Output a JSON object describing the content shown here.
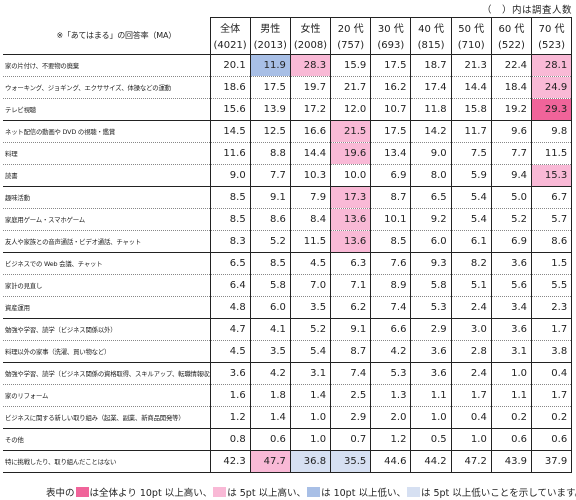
{
  "note": "（　）内は調査人数",
  "header": {
    "question": "※「あてはまる」の回答率（MA）",
    "columns": [
      {
        "label": "全体",
        "n": "(4021)"
      },
      {
        "label": "男性",
        "n": "(2013)"
      },
      {
        "label": "女性",
        "n": "(2008)"
      },
      {
        "label": "20 代",
        "n": "(757)"
      },
      {
        "label": "30 代",
        "n": "(693)"
      },
      {
        "label": "40 代",
        "n": "(815)"
      },
      {
        "label": "50 代",
        "n": "(710)"
      },
      {
        "label": "60 代",
        "n": "(522)"
      },
      {
        "label": "70 代",
        "n": "(523)"
      }
    ]
  },
  "colors": {
    "high10": "#f0649a",
    "high5": "#f9b9d6",
    "low10": "#a8bfe6",
    "low5": "#d6e0f2"
  },
  "rows": [
    {
      "label": "家の片付け、不要物の廃棄",
      "values": [
        "20.1",
        "11.9",
        "28.3",
        "15.9",
        "17.5",
        "18.7",
        "21.3",
        "22.4",
        "28.1"
      ],
      "marks": [
        "",
        "low10",
        "high5",
        "",
        "",
        "",
        "",
        "",
        "high5"
      ]
    },
    {
      "label": "ウォーキング、ジョギング、エクササイズ、体操などの運動",
      "values": [
        "18.6",
        "17.5",
        "19.7",
        "21.7",
        "16.2",
        "17.4",
        "14.4",
        "18.4",
        "24.9"
      ],
      "marks": [
        "",
        "",
        "",
        "",
        "",
        "",
        "",
        "",
        "high5"
      ]
    },
    {
      "label": "テレビ視聴",
      "values": [
        "15.6",
        "13.9",
        "17.2",
        "12.0",
        "10.7",
        "11.8",
        "15.8",
        "19.2",
        "29.3"
      ],
      "marks": [
        "",
        "",
        "",
        "",
        "",
        "",
        "",
        "",
        "high10"
      ]
    },
    {
      "label": "ネット配信の動画や DVD の視聴・鑑賞",
      "values": [
        "14.5",
        "12.5",
        "16.6",
        "21.5",
        "17.5",
        "14.2",
        "11.7",
        "9.6",
        "9.8"
      ],
      "marks": [
        "",
        "",
        "",
        "high5",
        "",
        "",
        "",
        "",
        ""
      ]
    },
    {
      "label": "料理",
      "values": [
        "11.6",
        "8.8",
        "14.4",
        "19.6",
        "13.4",
        "9.0",
        "7.5",
        "7.7",
        "11.5"
      ],
      "marks": [
        "",
        "",
        "",
        "high5",
        "",
        "",
        "",
        "",
        ""
      ]
    },
    {
      "label": "読書",
      "values": [
        "9.0",
        "7.7",
        "10.3",
        "10.0",
        "6.9",
        "8.0",
        "5.9",
        "9.4",
        "15.3"
      ],
      "marks": [
        "",
        "",
        "",
        "",
        "",
        "",
        "",
        "",
        "high5"
      ]
    },
    {
      "label": "趣味活動",
      "values": [
        "8.5",
        "9.1",
        "7.9",
        "17.3",
        "8.7",
        "6.5",
        "5.4",
        "5.0",
        "6.7"
      ],
      "marks": [
        "",
        "",
        "",
        "high5",
        "",
        "",
        "",
        "",
        ""
      ]
    },
    {
      "label": "家庭用ゲーム・スマホゲーム",
      "values": [
        "8.5",
        "8.6",
        "8.4",
        "13.6",
        "10.1",
        "9.2",
        "5.4",
        "5.2",
        "5.7"
      ],
      "marks": [
        "",
        "",
        "",
        "high5",
        "",
        "",
        "",
        "",
        ""
      ]
    },
    {
      "label": "友人や家族との音声通話・ビデオ通話、チャット",
      "values": [
        "8.3",
        "5.2",
        "11.5",
        "13.6",
        "8.5",
        "6.0",
        "6.1",
        "6.9",
        "8.6"
      ],
      "marks": [
        "",
        "",
        "",
        "high5",
        "",
        "",
        "",
        "",
        ""
      ]
    },
    {
      "label": "ビジネスでの Web 会議、チャット",
      "values": [
        "6.5",
        "8.5",
        "4.5",
        "6.3",
        "7.6",
        "9.3",
        "8.2",
        "3.6",
        "1.5"
      ],
      "marks": [
        "",
        "",
        "",
        "",
        "",
        "",
        "",
        "",
        ""
      ]
    },
    {
      "label": "家計の見直し",
      "values": [
        "6.4",
        "5.8",
        "7.0",
        "7.1",
        "8.9",
        "5.8",
        "5.1",
        "5.6",
        "5.5"
      ],
      "marks": [
        "",
        "",
        "",
        "",
        "",
        "",
        "",
        "",
        ""
      ]
    },
    {
      "label": "資産運用",
      "values": [
        "4.8",
        "6.0",
        "3.5",
        "6.2",
        "7.4",
        "5.3",
        "2.4",
        "3.4",
        "2.3"
      ],
      "marks": [
        "",
        "",
        "",
        "",
        "",
        "",
        "",
        "",
        ""
      ]
    },
    {
      "label": "勉強や学習、読学（ビジネス関係以外）",
      "values": [
        "4.7",
        "4.1",
        "5.2",
        "9.1",
        "6.6",
        "2.9",
        "3.0",
        "3.6",
        "1.7"
      ],
      "marks": [
        "",
        "",
        "",
        "",
        "",
        "",
        "",
        "",
        ""
      ]
    },
    {
      "label": "料理以外の家事（洗濯、買い物など）",
      "values": [
        "4.5",
        "3.5",
        "5.4",
        "8.7",
        "4.2",
        "3.6",
        "2.8",
        "3.1",
        "3.8"
      ],
      "marks": [
        "",
        "",
        "",
        "",
        "",
        "",
        "",
        "",
        ""
      ]
    },
    {
      "label": "勉強や学習、読学（ビジネス関係の資格取得、スキルアップ、転職情報収集等）",
      "values": [
        "3.6",
        "4.2",
        "3.1",
        "7.4",
        "5.3",
        "3.6",
        "2.4",
        "1.0",
        "0.4"
      ],
      "marks": [
        "",
        "",
        "",
        "",
        "",
        "",
        "",
        "",
        ""
      ]
    },
    {
      "label": "家のリフォーム",
      "values": [
        "1.6",
        "1.8",
        "1.4",
        "2.5",
        "1.3",
        "1.1",
        "1.7",
        "1.1",
        "1.7"
      ],
      "marks": [
        "",
        "",
        "",
        "",
        "",
        "",
        "",
        "",
        ""
      ]
    },
    {
      "label": "ビジネスに関する新しい取り組み（起業、副業、新商品開発等）",
      "values": [
        "1.2",
        "1.4",
        "1.0",
        "2.9",
        "2.0",
        "1.0",
        "0.4",
        "0.2",
        "0.2"
      ],
      "marks": [
        "",
        "",
        "",
        "",
        "",
        "",
        "",
        "",
        ""
      ]
    },
    {
      "label": "その他",
      "values": [
        "0.8",
        "0.6",
        "1.0",
        "0.7",
        "1.2",
        "0.5",
        "1.0",
        "0.6",
        "0.6"
      ],
      "marks": [
        "",
        "",
        "",
        "",
        "",
        "",
        "",
        "",
        ""
      ]
    },
    {
      "label": "特に挑戦したり、取り組んだことはない",
      "values": [
        "42.3",
        "47.7",
        "36.8",
        "35.5",
        "44.6",
        "44.2",
        "47.2",
        "43.9",
        "37.9"
      ],
      "marks": [
        "",
        "high5",
        "low5",
        "low5",
        "",
        "",
        "",
        "",
        ""
      ]
    }
  ],
  "legend": {
    "prefix": "表中の",
    "items": [
      {
        "color": "high10",
        "text": "は全体より 10pt 以上高い、"
      },
      {
        "color": "high5",
        "text": "は 5pt 以上高い、"
      },
      {
        "color": "low10",
        "text": "は 10pt 以上低い、"
      },
      {
        "color": "low5",
        "text": "は 5pt 以上低いことを示しています。"
      }
    ]
  }
}
